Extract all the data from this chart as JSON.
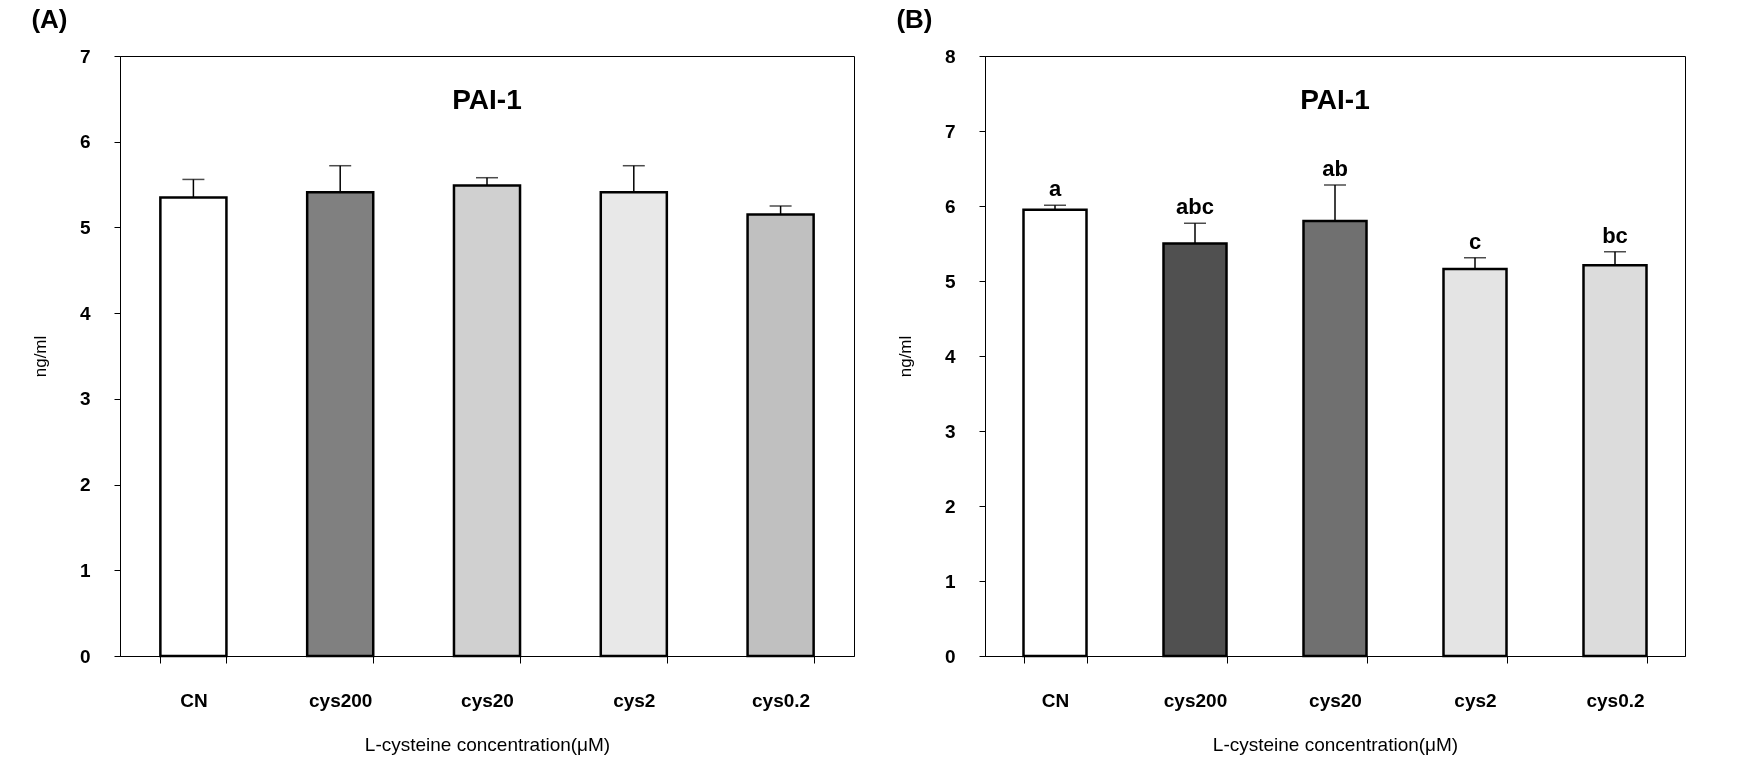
{
  "chart_data": [
    {
      "type": "bar",
      "title": "(A)",
      "annotations": [
        "PAI-1"
      ],
      "xlabel": "L-cysteine concentration(μM)",
      "ylabel": "ng/ml",
      "categories": [
        "CN",
        "cys200",
        "cys20",
        "cys2",
        "cys0.2"
      ],
      "values": [
        5.35,
        5.41,
        5.49,
        5.41,
        5.15
      ],
      "errors": [
        [
          5.35,
          5.56
        ],
        [
          5.41,
          5.72
        ],
        [
          5.49,
          5.58
        ],
        [
          5.41,
          5.72
        ],
        [
          5.15,
          5.25
        ]
      ],
      "colors": [
        "#ffffff",
        "#808080",
        "#d0d0d0",
        "#e8e8e8",
        "#c0c0c0"
      ],
      "ylim": [
        0,
        7
      ],
      "yticks": [
        0,
        1,
        2,
        3,
        4,
        5,
        6,
        7
      ],
      "grid": false
    },
    {
      "type": "bar",
      "title": "(B)",
      "xlabel": "L-cysteine concentration(μM)",
      "ylabel": "ng/ml",
      "annotations": [
        "PAI-1",
        {
          "text": "a",
          "x": "CN",
          "y": 6.01
        },
        {
          "text": "abc",
          "x": "cys200",
          "y": 5.77
        },
        {
          "text": "ab",
          "x": "cys20",
          "y": 6.28
        },
        {
          "text": "c",
          "x": "cys2",
          "y": 5.31
        },
        {
          "text": "bc",
          "x": "cys0.2",
          "y": 5.39
        }
      ],
      "categories": [
        "CN",
        "cys200",
        "cys20",
        "cys2",
        "cys0.2"
      ],
      "values": [
        5.95,
        5.5,
        5.8,
        5.16,
        5.21
      ],
      "errors": [
        [
          5.95,
          6.01
        ],
        [
          5.5,
          5.77
        ],
        [
          5.8,
          6.28
        ],
        [
          5.16,
          5.31
        ],
        [
          5.21,
          5.39
        ]
      ],
      "colors": [
        "#ffffff",
        "#505050",
        "#707070",
        "#e4e4e4",
        "#dcdcdc"
      ],
      "ylim": [
        0,
        8
      ],
      "yticks": [
        0,
        1,
        2,
        3,
        4,
        5,
        6,
        7,
        8
      ],
      "grid": false
    }
  ]
}
